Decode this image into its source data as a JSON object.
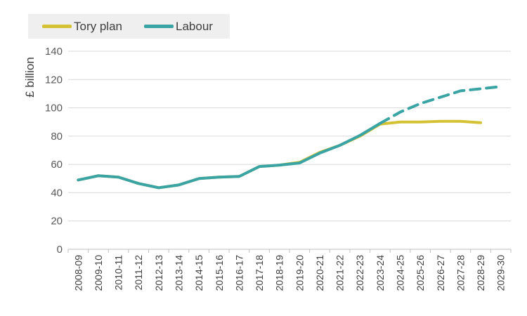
{
  "chart_data": {
    "type": "line",
    "ylabel": "£ billion",
    "ylim": [
      0,
      140
    ],
    "yticks": [
      0,
      20,
      40,
      60,
      80,
      100,
      120,
      140
    ],
    "grid": true,
    "legend_position": "top-left",
    "categories": [
      "2008-09",
      "2009-10",
      "2010-11",
      "2011-12",
      "2012-13",
      "2013-14",
      "2014-15",
      "2015-16",
      "2016-17",
      "2017-18",
      "2018-19",
      "2019-20",
      "2020-21",
      "2021-22",
      "2022-23",
      "2023-24",
      "2024-25",
      "2025-26",
      "2026-27",
      "2027-28",
      "2028-29",
      "2029-30"
    ],
    "series": [
      {
        "name": "Tory plan",
        "color": "#d4c234",
        "style": "solid",
        "values": [
          49,
          52,
          51,
          46.5,
          43.5,
          45.5,
          50,
          51,
          51.5,
          58.5,
          59.5,
          61.5,
          68.5,
          73.5,
          80,
          88.5,
          90,
          90,
          90.5,
          90.5,
          89.5,
          null
        ]
      },
      {
        "name": "Labour",
        "color": "#3aa3a3",
        "style": "solid-then-dashed",
        "dashed_from": "2023-24",
        "values": [
          49,
          52,
          51,
          46.5,
          43.5,
          45.5,
          50,
          51,
          51.5,
          58.5,
          59.5,
          61,
          68,
          73.5,
          80.5,
          89,
          97,
          103,
          107.5,
          112,
          113.5,
          115
        ]
      }
    ]
  }
}
